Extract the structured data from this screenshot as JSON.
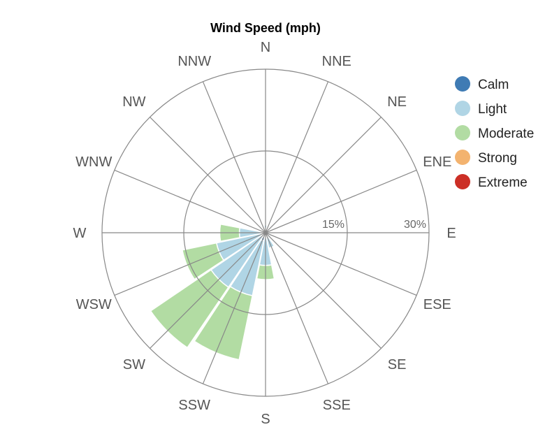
{
  "chart_data": {
    "type": "bar",
    "polar": true,
    "title": "Wind Speed (mph)",
    "directions": [
      "N",
      "NNE",
      "NE",
      "ENE",
      "E",
      "ESE",
      "SE",
      "SSE",
      "S",
      "SSW",
      "SW",
      "WSW",
      "W",
      "WNW",
      "NW",
      "NNW"
    ],
    "radial_axis": {
      "max": 30,
      "ticks": [
        15,
        30
      ],
      "tick_labels": [
        "15%",
        "30%"
      ],
      "unit": "%"
    },
    "legend_position": "right",
    "series": [
      {
        "name": "Calm",
        "color": "#3f7bb4",
        "values": [
          0.2,
          0.2,
          0.1,
          0.1,
          0.1,
          0.2,
          0.2,
          0.3,
          1.0,
          1.5,
          0.6,
          0.4,
          0.3,
          0.2,
          0.1,
          0.1
        ]
      },
      {
        "name": "Light",
        "color": "#b0d5e5",
        "values": [
          1.2,
          0.3,
          0.3,
          0.2,
          0.4,
          0.9,
          1.0,
          2.6,
          5.0,
          10.3,
          11.5,
          8.8,
          4.5,
          0.7,
          0.4,
          0.6
        ]
      },
      {
        "name": "Moderate",
        "color": "#b2dca3",
        "values": [
          0.0,
          0.0,
          0.0,
          0.0,
          0.0,
          0.0,
          0.0,
          0.0,
          2.6,
          12.0,
          13.4,
          6.4,
          3.6,
          0.0,
          0.0,
          0.0
        ]
      },
      {
        "name": "Strong",
        "color": "#f3b36f",
        "values": [
          0,
          0,
          0,
          0,
          0,
          0,
          0,
          0,
          0,
          0,
          0,
          0,
          0,
          0,
          0,
          0
        ]
      },
      {
        "name": "Extreme",
        "color": "#cc2f26",
        "values": [
          0,
          0,
          0,
          0,
          0,
          0,
          0,
          0,
          0,
          0,
          0,
          0,
          0,
          0,
          0,
          0
        ]
      }
    ]
  }
}
